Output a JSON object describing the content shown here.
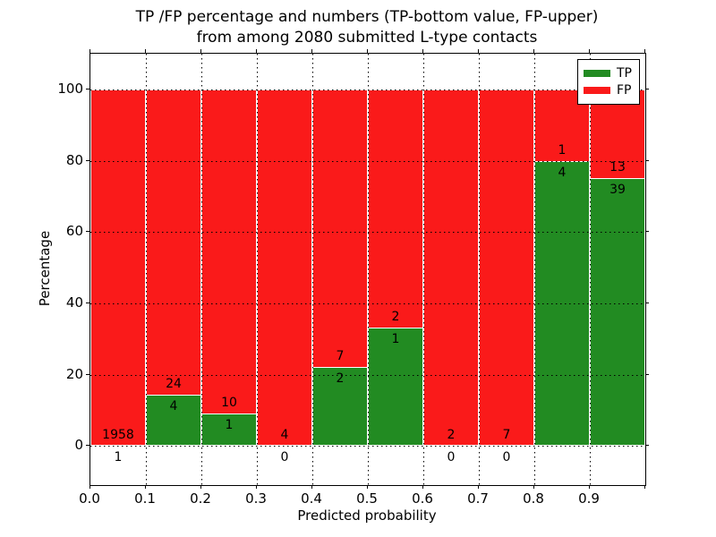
{
  "figure": {
    "title_line1": "TP /FP percentage and numbers (TP-bottom value, FP-upper)",
    "title_line2": "from among 2080 submitted L-type contacts",
    "xlabel": "Predicted probability",
    "ylabel": "Percentage"
  },
  "legend": {
    "position": "upper-right",
    "entries": [
      {
        "label": "TP",
        "color": "#228b22"
      },
      {
        "label": "FP",
        "color": "#fa1a1a"
      }
    ]
  },
  "chart_data": {
    "type": "bar",
    "variant": "stacked-percentage",
    "title": "TP /FP percentage and numbers (TP-bottom value, FP-upper) from among 2080 submitted L-type contacts",
    "xlabel": "Predicted probability",
    "ylabel": "Percentage",
    "grid": {
      "visible": true,
      "style": "dotted"
    },
    "xlim": [
      0.0,
      1.0
    ],
    "ylim": [
      -11,
      110
    ],
    "x_tick_values": [
      0.0,
      0.1,
      0.2,
      0.3,
      0.4,
      0.5,
      0.6,
      0.7,
      0.8,
      0.9
    ],
    "x_tick_labels": [
      "0.0",
      "0.1",
      "0.2",
      "0.3",
      "0.4",
      "0.5",
      "0.6",
      "0.7",
      "0.8",
      "0.9"
    ],
    "y_tick_values": [
      0,
      20,
      40,
      60,
      80,
      100
    ],
    "y_tick_labels": [
      "0",
      "20",
      "40",
      "60",
      "80",
      "100"
    ],
    "bin_width": 0.1,
    "series": [
      {
        "name": "TP",
        "color": "#228b22",
        "counts": [
          1,
          4,
          1,
          0,
          2,
          1,
          0,
          0,
          4,
          39
        ]
      },
      {
        "name": "FP",
        "color": "#fa1a1a",
        "counts": [
          1958,
          24,
          10,
          4,
          7,
          2,
          2,
          7,
          1,
          13
        ]
      }
    ],
    "bins": [
      {
        "x_start": 0.0,
        "x_end": 0.1,
        "tp_count": 1,
        "fp_count": 1958,
        "tp_percent": 0.05
      },
      {
        "x_start": 0.1,
        "x_end": 0.2,
        "tp_count": 4,
        "fp_count": 24,
        "tp_percent": 14.3
      },
      {
        "x_start": 0.2,
        "x_end": 0.3,
        "tp_count": 1,
        "fp_count": 10,
        "tp_percent": 9.1
      },
      {
        "x_start": 0.3,
        "x_end": 0.4,
        "tp_count": 0,
        "fp_count": 4,
        "tp_percent": 0
      },
      {
        "x_start": 0.4,
        "x_end": 0.5,
        "tp_count": 2,
        "fp_count": 7,
        "tp_percent": 22.2
      },
      {
        "x_start": 0.5,
        "x_end": 0.6,
        "tp_count": 1,
        "fp_count": 2,
        "tp_percent": 33.3
      },
      {
        "x_start": 0.6,
        "x_end": 0.7,
        "tp_count": 0,
        "fp_count": 2,
        "tp_percent": 0
      },
      {
        "x_start": 0.7,
        "x_end": 0.8,
        "tp_count": 0,
        "fp_count": 7,
        "tp_percent": 0
      },
      {
        "x_start": 0.8,
        "x_end": 0.9,
        "tp_count": 4,
        "fp_count": 1,
        "tp_percent": 80
      },
      {
        "x_start": 0.9,
        "x_end": 1.0,
        "tp_count": 39,
        "fp_count": 13,
        "tp_percent": 75
      }
    ]
  }
}
